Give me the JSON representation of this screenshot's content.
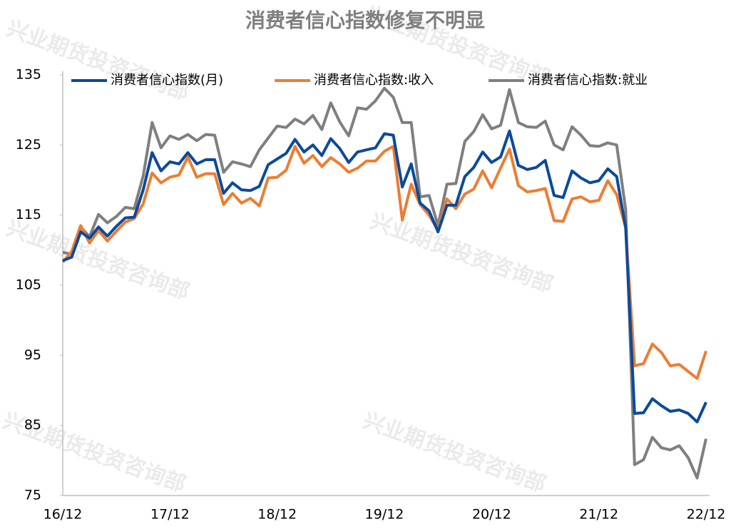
{
  "chart_data": {
    "type": "line",
    "title": "消费者信心指数修复不明显",
    "watermark": "兴业期货投资咨询部",
    "categories": [
      "16/12",
      null,
      null,
      null,
      null,
      null,
      null,
      null,
      null,
      null,
      null,
      null,
      "17/12",
      null,
      null,
      null,
      null,
      null,
      null,
      null,
      null,
      null,
      null,
      null,
      "18/12",
      null,
      null,
      null,
      null,
      null,
      null,
      null,
      null,
      null,
      null,
      null,
      "19/12",
      null,
      null,
      null,
      null,
      null,
      null,
      null,
      null,
      null,
      null,
      null,
      "20/12",
      null,
      null,
      null,
      null,
      null,
      null,
      null,
      null,
      null,
      null,
      null,
      "21/12",
      null,
      null,
      null,
      null,
      null,
      null,
      null,
      null,
      null,
      null,
      null,
      "22/12"
    ],
    "ylim": [
      75,
      135
    ],
    "yticks": [
      75,
      85,
      95,
      105,
      115,
      125,
      135
    ],
    "legend": "top",
    "series": [
      {
        "name": "消费者信心指数(月)",
        "color": "#0b4a9c",
        "values": [
          108.5,
          109.0,
          112.6,
          111.7,
          113.3,
          112.0,
          113.4,
          114.6,
          114.7,
          118.6,
          123.9,
          121.3,
          122.6,
          122.3,
          123.9,
          122.3,
          122.9,
          122.9,
          118.1,
          119.6,
          118.6,
          118.5,
          119.1,
          122.2,
          123.0,
          123.8,
          125.8,
          124.0,
          125.0,
          123.5,
          125.9,
          124.5,
          122.5,
          124.0,
          124.3,
          124.6,
          126.6,
          126.4,
          119.0,
          122.3,
          116.7,
          115.6,
          112.6,
          116.4,
          116.4,
          120.5,
          121.8,
          124.0,
          122.5,
          123.3,
          127.0,
          122.1,
          121.5,
          121.8,
          122.8,
          117.8,
          117.5,
          121.3,
          120.3,
          119.6,
          119.9,
          121.6,
          120.5,
          113.2,
          86.7,
          86.8,
          88.8,
          87.8,
          87.0,
          87.2,
          86.7,
          85.5,
          88.3
        ]
      },
      {
        "name": "消费者信心指数:收入",
        "color": "#ed7d31",
        "values": [
          108.3,
          109.8,
          113.5,
          111.0,
          112.8,
          111.3,
          112.7,
          114.0,
          114.5,
          116.6,
          121.0,
          119.6,
          120.4,
          120.7,
          123.3,
          120.4,
          120.9,
          120.9,
          116.5,
          118.1,
          116.7,
          117.4,
          116.3,
          120.3,
          120.4,
          121.4,
          124.8,
          122.4,
          123.5,
          121.9,
          123.2,
          122.3,
          121.1,
          121.7,
          122.7,
          122.7,
          124.1,
          124.8,
          114.3,
          119.4,
          116.5,
          115.0,
          112.8,
          117.3,
          115.9,
          118.0,
          118.7,
          121.3,
          118.9,
          121.7,
          124.4,
          119.2,
          118.3,
          118.5,
          118.8,
          114.2,
          114.1,
          117.3,
          117.6,
          116.9,
          117.1,
          119.9,
          117.9,
          113.2,
          93.5,
          93.8,
          96.6,
          95.4,
          93.5,
          93.7,
          92.7,
          91.7,
          95.6
        ]
      },
      {
        "name": "消费者信心指数:就业",
        "color": "#7f7f7f",
        "values": [
          109.7,
          109.4,
          113.3,
          111.9,
          115.1,
          113.9,
          114.8,
          116.1,
          115.9,
          120.6,
          128.2,
          124.6,
          126.3,
          125.8,
          126.5,
          125.6,
          126.5,
          126.4,
          121.1,
          122.6,
          122.3,
          121.9,
          124.3,
          126.0,
          127.7,
          127.5,
          128.7,
          128.0,
          129.2,
          127.2,
          131.0,
          128.3,
          126.3,
          130.3,
          130.1,
          131.3,
          133.1,
          131.8,
          128.2,
          128.2,
          117.6,
          117.8,
          113.5,
          119.4,
          119.5,
          125.5,
          126.9,
          129.3,
          127.3,
          127.8,
          132.9,
          128.2,
          127.6,
          127.5,
          128.4,
          125.0,
          124.3,
          127.6,
          126.4,
          124.9,
          124.8,
          125.3,
          125.0,
          115.8,
          79.4,
          80.1,
          83.3,
          81.8,
          81.5,
          82.1,
          80.4,
          77.5,
          83.1
        ]
      }
    ]
  }
}
